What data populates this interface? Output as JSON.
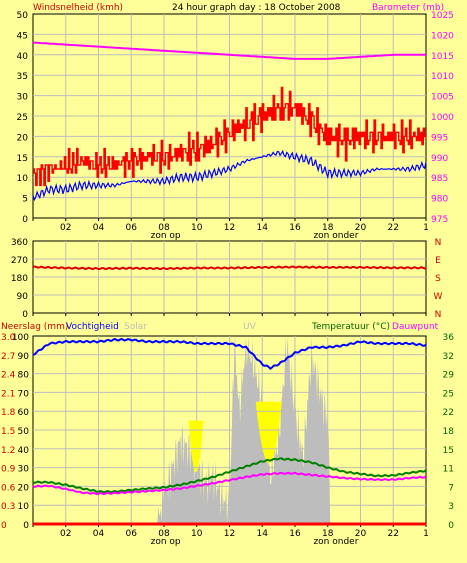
{
  "header": {
    "left_label": "Windsnelheid (kmh)",
    "title": "24 hour graph day : 18 October 2008",
    "right_label": "Barometer (mb)"
  },
  "colors": {
    "background": "#ffff99",
    "plot_bg": "#ffff99",
    "grid": "#bdbdbd",
    "wind_max": "#ff0000",
    "wind_avg": "#0000ff",
    "barometer": "#ff00ff",
    "direction": "#dd0000",
    "humidity": "#0000ff",
    "temperature": "#008000",
    "dewpoint": "#ff00ff",
    "solar": "#bdbdbd",
    "uv": "#ffff00",
    "rain": "#ff0000",
    "temp_axis_label": "#006400",
    "left_axis_label": "#cc0000",
    "right_axis_label": "#ff00ff"
  },
  "chart_data": [
    {
      "type": "line",
      "name": "wind-barometer",
      "xlabel": "",
      "x_ticks": [
        "02",
        "04",
        "06",
        "08",
        "10",
        "12",
        "14",
        "16",
        "18",
        "20",
        "22",
        "1"
      ],
      "sun_labels": {
        "sunrise": "zon op",
        "sunset": "zon onder"
      },
      "left_axis": {
        "label": "Windsnelheid (kmh)",
        "ylim": [
          0,
          50
        ],
        "ticks": [
          0,
          5,
          10,
          15,
          20,
          25,
          30,
          35,
          40,
          45,
          50
        ]
      },
      "right_axis": {
        "label": "Barometer (mb)",
        "ylim": [
          975,
          1025
        ],
        "ticks": [
          975,
          980,
          985,
          990,
          995,
          1000,
          1005,
          1010,
          1015,
          1020,
          1025
        ]
      },
      "series": [
        {
          "name": "Gust",
          "color": "#ff0000",
          "axis": "left",
          "hours": [
            0,
            1,
            2,
            3,
            4,
            5,
            6,
            7,
            8,
            9,
            10,
            11,
            12,
            13,
            14,
            15,
            16,
            17,
            18,
            19,
            20,
            21,
            22,
            23,
            24
          ],
          "values": [
            10,
            12,
            13,
            14,
            13,
            13,
            14,
            15,
            15,
            16,
            17,
            18,
            21,
            23,
            25,
            27,
            27,
            24,
            20,
            19,
            20,
            20,
            20,
            20,
            20
          ]
        },
        {
          "name": "Gemiddeld",
          "color": "#0000ff",
          "axis": "left",
          "hours": [
            0,
            1,
            2,
            3,
            4,
            5,
            6,
            7,
            8,
            9,
            10,
            11,
            12,
            13,
            14,
            15,
            16,
            17,
            18,
            19,
            20,
            21,
            22,
            23,
            24
          ],
          "values": [
            5,
            7,
            7,
            8,
            8,
            8,
            9,
            9,
            9,
            10,
            10,
            11,
            12,
            14,
            15,
            16,
            15,
            14,
            11,
            11,
            11,
            12,
            12,
            12,
            13
          ]
        },
        {
          "name": "Barometer",
          "color": "#ff00ff",
          "axis": "right",
          "hours": [
            0,
            2,
            4,
            6,
            8,
            10,
            12,
            14,
            16,
            18,
            20,
            22,
            24
          ],
          "values": [
            1018,
            1017.5,
            1017,
            1016.5,
            1016,
            1015.5,
            1015,
            1014.5,
            1014,
            1014,
            1014.5,
            1015,
            1015
          ]
        }
      ]
    },
    {
      "type": "line",
      "name": "wind-direction",
      "left_axis": {
        "ylim": [
          0,
          360
        ],
        "ticks": [
          0,
          90,
          180,
          270,
          360
        ]
      },
      "right_axis": {
        "ticks": [
          "N",
          "E",
          "S",
          "W",
          "N"
        ]
      },
      "series": [
        {
          "name": "Windrichting",
          "color": "#dd0000",
          "hours": [
            0,
            2,
            4,
            6,
            8,
            10,
            12,
            14,
            16,
            18,
            20,
            22,
            24
          ],
          "values": [
            230,
            225,
            222,
            224,
            222,
            225,
            225,
            228,
            230,
            228,
            228,
            226,
            226
          ]
        }
      ]
    },
    {
      "type": "area",
      "name": "climate",
      "labels": {
        "left1": "Neerslag (mm)",
        "left2": "Vochtigheid",
        "solar": "Solar",
        "uv": "UV",
        "right1": "Temperatuur (°C)",
        "right2": "Dauwpunt"
      },
      "left_axis_rain": {
        "ylim": [
          0,
          3
        ],
        "ticks": [
          "0",
          "0.3",
          "0.6",
          "0.9",
          "1.2",
          "1.5",
          "1.8",
          "2.1",
          "2.4",
          "2.7",
          "3.0"
        ]
      },
      "left_axis_humidity": {
        "ylim": [
          0,
          100
        ],
        "ticks": [
          0,
          10,
          20,
          30,
          40,
          50,
          60,
          70,
          80,
          90,
          100
        ]
      },
      "right_axis": {
        "label": "Temperatuur (°C)",
        "ylim": [
          0,
          36
        ],
        "ticks": [
          0,
          3,
          7,
          11,
          15,
          18,
          22,
          25,
          29,
          32,
          36
        ]
      },
      "series": [
        {
          "name": "Vochtigheid",
          "color": "#0000ff",
          "hours": [
            0,
            1,
            2,
            3,
            4,
            5,
            6,
            7,
            8,
            9,
            10,
            11,
            12,
            13,
            14,
            14.5,
            15,
            16,
            17,
            18,
            19,
            20,
            21,
            22,
            23,
            24
          ],
          "values": [
            90,
            96,
            97,
            97,
            97,
            98,
            98,
            97,
            97,
            97,
            96,
            96,
            96,
            94,
            85,
            83,
            85,
            91,
            94,
            94,
            95,
            97,
            96,
            96,
            96,
            95
          ]
        },
        {
          "name": "Temperatuur",
          "color": "#008000",
          "hours": [
            0,
            1,
            2,
            3,
            4,
            5,
            6,
            7,
            8,
            9,
            10,
            11,
            12,
            13,
            14,
            15,
            16,
            17,
            18,
            19,
            20,
            21,
            22,
            23,
            24
          ],
          "values": [
            8,
            8,
            7.5,
            6.8,
            6.2,
            6.2,
            6.5,
            6.8,
            7,
            7.5,
            8.2,
            9,
            10,
            11,
            12,
            12.5,
            12.3,
            11.8,
            10.8,
            10,
            9.6,
            9.2,
            9.3,
            9.8,
            10.2
          ]
        },
        {
          "name": "Dauwpunt",
          "color": "#ff00ff",
          "hours": [
            0,
            1,
            2,
            3,
            4,
            5,
            6,
            7,
            8,
            9,
            10,
            11,
            12,
            13,
            14,
            15,
            16,
            17,
            18,
            19,
            20,
            21,
            22,
            23,
            24
          ],
          "values": [
            7.2,
            7.3,
            6.7,
            6,
            5.8,
            5.9,
            6.1,
            6.3,
            6.5,
            6.8,
            7.3,
            7.8,
            8.4,
            9,
            9.5,
            9.7,
            9.7,
            9.4,
            9.1,
            8.8,
            8.6,
            8.5,
            8.5,
            8.8,
            9
          ]
        },
        {
          "name": "Solar",
          "color": "#bdbdbd",
          "hours": [
            7.6,
            8,
            8.5,
            9,
            9.5,
            10,
            10.5,
            11,
            11.5,
            12,
            12.3,
            12.6,
            13,
            13.5,
            14,
            14.5,
            15,
            15.5,
            16,
            16.5,
            17,
            17.5,
            18,
            18.2
          ],
          "values": [
            0,
            15,
            30,
            45,
            40,
            32,
            22,
            26,
            15,
            10,
            97,
            60,
            95,
            85,
            65,
            25,
            45,
            97,
            60,
            35,
            90,
            72,
            55,
            0
          ]
        },
        {
          "name": "Neerslag",
          "color": "#ff0000",
          "hours": [
            0,
            24
          ],
          "values": [
            0,
            0
          ]
        }
      ]
    }
  ]
}
